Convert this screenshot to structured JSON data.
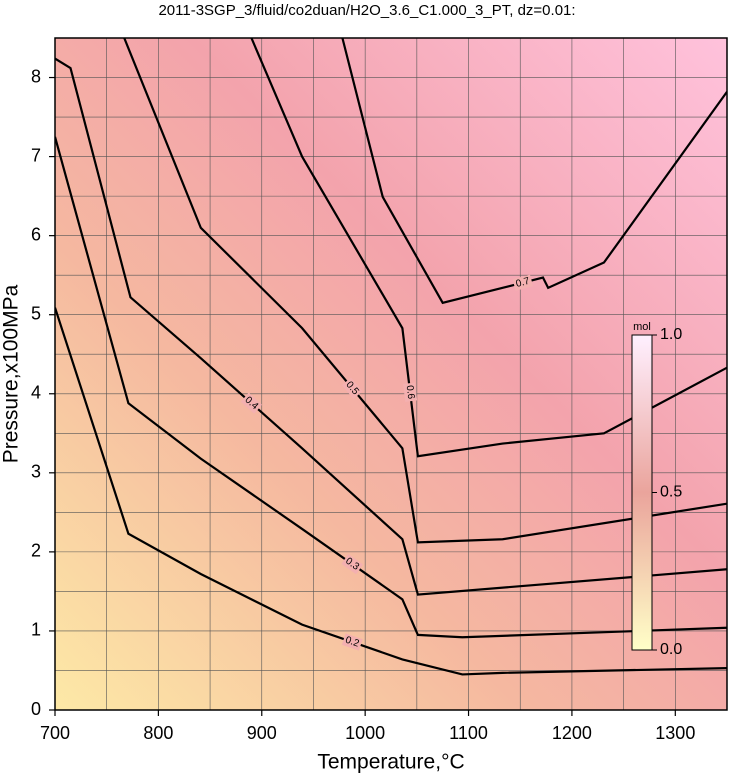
{
  "chart_data": {
    "type": "contour",
    "title": "2011-3SGP_3/fluid/co2duan/H2O_3.6_C1.000_3_PT, dz=0.01:",
    "x_label": "Temperature,°C",
    "y_label": "Pressure,x100MPa",
    "xlim": [
      700,
      1350
    ],
    "ylim": [
      0,
      8.5
    ],
    "xticks": [
      700,
      800,
      900,
      1000,
      1100,
      1200,
      1300
    ],
    "yticks": [
      0,
      1,
      2,
      3,
      4,
      5,
      6,
      7,
      8
    ],
    "minor_xticks": [
      750,
      850,
      950,
      1050,
      1150,
      1250
    ],
    "minor_yticks": [
      0.5,
      1.5,
      2.5,
      3.5,
      4.5,
      5.5,
      6.5,
      7.5
    ],
    "grid": true,
    "series": [
      {
        "level": 0.2,
        "x": [
          700,
          771,
          841,
          939,
          1036,
          1094,
          1133,
          1350
        ],
        "y": [
          5.09,
          2.23,
          1.72,
          1.08,
          0.64,
          0.45,
          0.47,
          0.53
        ]
      },
      {
        "level": 0.3,
        "x": [
          700,
          771,
          841,
          939,
          1036,
          1051,
          1094,
          1350
        ],
        "y": [
          7.25,
          3.88,
          3.18,
          2.29,
          1.4,
          0.95,
          0.92,
          1.04
        ]
      },
      {
        "level": 0.4,
        "x": [
          700,
          715,
          773,
          841,
          939,
          1036,
          1051,
          1350
        ],
        "y": [
          8.24,
          8.12,
          5.22,
          4.45,
          3.31,
          2.16,
          1.46,
          1.78
        ]
      },
      {
        "level": 0.5,
        "x": [
          767,
          841,
          939,
          1036,
          1051,
          1133,
          1350
        ],
        "y": [
          8.5,
          6.1,
          4.83,
          3.31,
          2.12,
          2.16,
          2.61
        ]
      },
      {
        "level": 0.6,
        "x": [
          890,
          939,
          1036,
          1051,
          1133,
          1231,
          1350
        ],
        "y": [
          8.5,
          7.0,
          4.83,
          3.21,
          3.37,
          3.5,
          4.33
        ]
      },
      {
        "level": 0.7,
        "x": [
          978,
          1017,
          1075,
          1133,
          1172,
          1177,
          1231,
          1350
        ],
        "y": [
          8.5,
          6.49,
          5.15,
          5.34,
          5.47,
          5.34,
          5.66,
          7.82
        ]
      }
    ],
    "colorbar": {
      "label": "mol",
      "lim": [
        0,
        1
      ],
      "ticks": [
        {
          "value": 0,
          "label": "0.0"
        },
        0.5,
        {
          "value": 1,
          "label": "1.0"
        }
      ]
    }
  }
}
